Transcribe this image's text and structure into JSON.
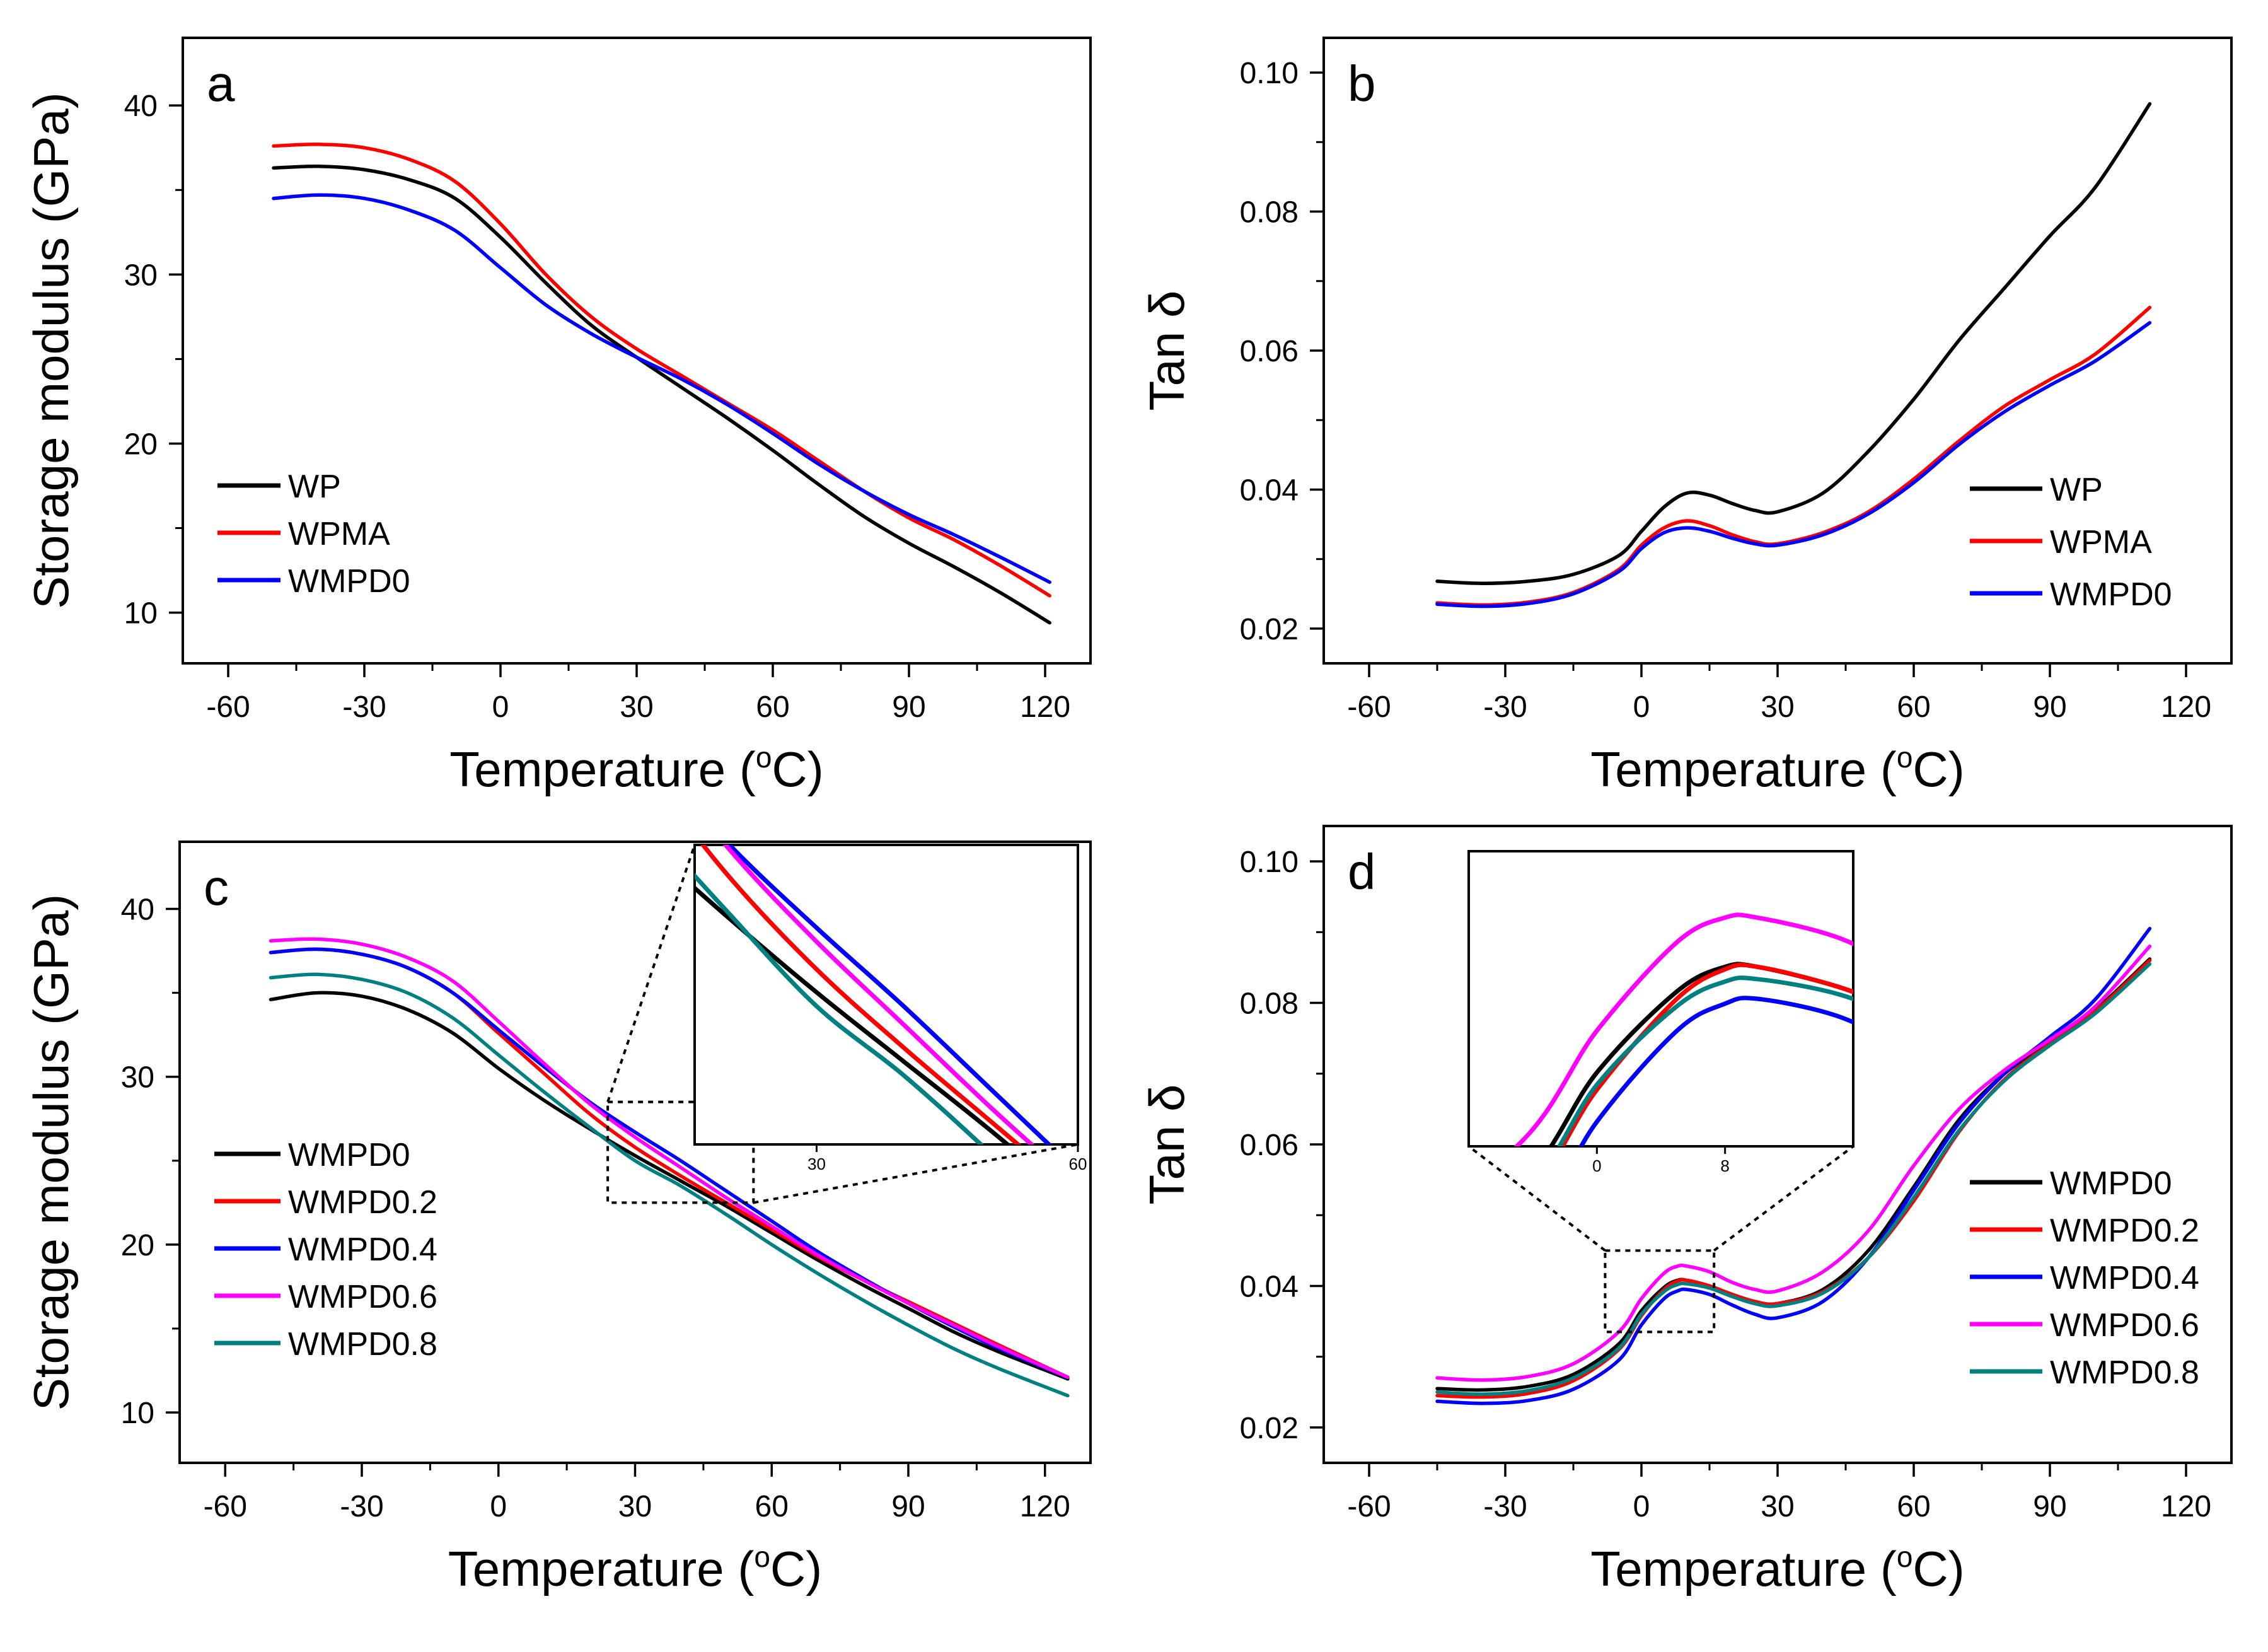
{
  "figure": {
    "description_free": true
  },
  "chart_data": [
    {
      "id": "a",
      "type": "line",
      "panel_label": "a",
      "xlabel": "Temperature (",
      "xlabel_unit": "C",
      "xlabel_sup": "o",
      "xlabel_close": ")",
      "ylabel": "Storage modulus (GPa)",
      "xlim": [
        -70,
        130
      ],
      "ylim": [
        7,
        44
      ],
      "xticks": [
        -60,
        -30,
        0,
        30,
        60,
        90,
        120
      ],
      "yticks": [
        10,
        20,
        30,
        40
      ],
      "xtick_labels": [
        "-60",
        "-30",
        "0",
        "30",
        "60",
        "90",
        "120"
      ],
      "ytick_labels": [
        "10",
        "20",
        "30",
        "40"
      ],
      "legend_position": "bottom-left",
      "series": [
        {
          "name": "WP",
          "color": "#000000",
          "x": [
            -50,
            -40,
            -30,
            -20,
            -10,
            0,
            10,
            20,
            30,
            40,
            50,
            60,
            70,
            80,
            90,
            100,
            110,
            121
          ],
          "y": [
            36.3,
            36.4,
            36.2,
            35.6,
            34.5,
            32.2,
            29.5,
            27.0,
            25.1,
            23.3,
            21.5,
            19.6,
            17.6,
            15.7,
            14.1,
            12.7,
            11.2,
            9.4
          ]
        },
        {
          "name": "WPMA",
          "color": "#ff0000",
          "x": [
            -50,
            -40,
            -30,
            -20,
            -10,
            0,
            10,
            20,
            30,
            40,
            50,
            60,
            70,
            80,
            90,
            100,
            110,
            121
          ],
          "y": [
            37.6,
            37.7,
            37.5,
            36.8,
            35.5,
            33.0,
            30.0,
            27.5,
            25.6,
            24.0,
            22.4,
            20.8,
            19.0,
            17.2,
            15.6,
            14.3,
            12.8,
            11.0
          ]
        },
        {
          "name": "WMPD0",
          "color": "#0000ff",
          "x": [
            -50,
            -40,
            -30,
            -20,
            -10,
            0,
            10,
            20,
            30,
            40,
            50,
            60,
            70,
            80,
            90,
            100,
            110,
            121
          ],
          "y": [
            34.5,
            34.7,
            34.5,
            33.8,
            32.6,
            30.4,
            28.2,
            26.5,
            25.1,
            23.8,
            22.3,
            20.6,
            18.8,
            17.2,
            15.8,
            14.6,
            13.3,
            11.8
          ]
        }
      ]
    },
    {
      "id": "b",
      "type": "line",
      "panel_label": "b",
      "xlabel": "Temperature (",
      "xlabel_unit": "C",
      "xlabel_sup": "o",
      "xlabel_close": ")",
      "ylabel": "Tan δ",
      "xlim": [
        -70,
        130
      ],
      "ylim": [
        0.015,
        0.105
      ],
      "xticks": [
        -60,
        -30,
        0,
        30,
        60,
        90,
        120
      ],
      "yticks": [
        0.02,
        0.04,
        0.06,
        0.08,
        0.1
      ],
      "xtick_labels": [
        "-60",
        "-30",
        "0",
        "30",
        "60",
        "90",
        "120"
      ],
      "ytick_labels": [
        "0.02",
        "0.04",
        "0.06",
        "0.08",
        "0.10"
      ],
      "legend_position": "bottom-right",
      "series": [
        {
          "name": "WP",
          "color": "#000000",
          "x": [
            -45,
            -35,
            -25,
            -15,
            -5,
            0,
            5,
            10,
            15,
            20,
            25,
            30,
            40,
            50,
            60,
            70,
            80,
            90,
            100,
            112
          ],
          "y": [
            0.0268,
            0.0265,
            0.0268,
            0.0278,
            0.0305,
            0.034,
            0.0375,
            0.0395,
            0.0392,
            0.038,
            0.037,
            0.0368,
            0.0395,
            0.0455,
            0.053,
            0.0615,
            0.069,
            0.0765,
            0.0835,
            0.0955
          ]
        },
        {
          "name": "WPMA",
          "color": "#ff0000",
          "x": [
            -45,
            -35,
            -25,
            -15,
            -5,
            0,
            5,
            10,
            15,
            20,
            25,
            30,
            40,
            50,
            60,
            70,
            80,
            90,
            100,
            112
          ],
          "y": [
            0.0237,
            0.0234,
            0.0238,
            0.0252,
            0.0285,
            0.032,
            0.0345,
            0.0355,
            0.0348,
            0.0335,
            0.0325,
            0.0322,
            0.0338,
            0.0368,
            0.0415,
            0.047,
            0.052,
            0.0558,
            0.0595,
            0.0662
          ]
        },
        {
          "name": "WMPD0",
          "color": "#0000ff",
          "x": [
            -45,
            -35,
            -25,
            -15,
            -5,
            0,
            5,
            10,
            15,
            20,
            25,
            30,
            40,
            50,
            60,
            70,
            80,
            90,
            100,
            112
          ],
          "y": [
            0.0235,
            0.0232,
            0.0236,
            0.025,
            0.0282,
            0.0315,
            0.0338,
            0.0345,
            0.034,
            0.033,
            0.0322,
            0.032,
            0.0335,
            0.0365,
            0.041,
            0.0465,
            0.0512,
            0.055,
            0.0585,
            0.064
          ]
        }
      ]
    },
    {
      "id": "c",
      "type": "line",
      "panel_label": "c",
      "xlabel": "Temperature (",
      "xlabel_unit": "C",
      "xlabel_sup": "o",
      "xlabel_close": ")",
      "ylabel": "Storage modulus (GPa)",
      "xlim": [
        -70,
        130
      ],
      "ylim": [
        7,
        44
      ],
      "xticks": [
        -60,
        -30,
        0,
        30,
        60,
        90,
        120
      ],
      "yticks": [
        10,
        20,
        30,
        40
      ],
      "xtick_labels": [
        "-60",
        "-30",
        "0",
        "30",
        "60",
        "90",
        "120"
      ],
      "ytick_labels": [
        "10",
        "20",
        "30",
        "40"
      ],
      "legend_position": "bottom-left",
      "inset": {
        "xlim": [
          16,
          60
        ],
        "ylim": [
          22,
          28.5
        ],
        "xticks": [
          30,
          60
        ],
        "xtick_labels": [
          "30",
          "60"
        ],
        "zoom_region": {
          "x": [
            24,
            56
          ],
          "y": [
            22.5,
            28.5
          ]
        }
      },
      "series": [
        {
          "name": "WMPD0",
          "color": "#000000",
          "x": [
            -50,
            -40,
            -30,
            -20,
            -10,
            0,
            10,
            20,
            30,
            40,
            50,
            60,
            70,
            80,
            90,
            100,
            110,
            125
          ],
          "y": [
            34.6,
            35.0,
            34.8,
            34.0,
            32.6,
            30.5,
            28.6,
            26.9,
            25.3,
            23.8,
            22.3,
            20.7,
            19.1,
            17.6,
            16.2,
            14.8,
            13.6,
            12.0
          ]
        },
        {
          "name": "WMPD0.2",
          "color": "#ff0000",
          "x": [
            -50,
            -40,
            -30,
            -20,
            -10,
            0,
            10,
            20,
            30,
            40,
            50,
            60,
            70,
            80,
            90,
            100,
            110,
            125
          ],
          "y": [
            37.4,
            37.6,
            37.3,
            36.5,
            35.0,
            32.6,
            30.2,
            27.8,
            25.8,
            24.1,
            22.5,
            20.9,
            19.3,
            17.9,
            16.6,
            15.3,
            14.0,
            12.1
          ]
        },
        {
          "name": "WMPD0.4",
          "color": "#0000ff",
          "x": [
            -50,
            -40,
            -30,
            -20,
            -10,
            0,
            10,
            20,
            30,
            40,
            50,
            60,
            70,
            80,
            90,
            100,
            110,
            125
          ],
          "y": [
            37.4,
            37.6,
            37.3,
            36.5,
            35.0,
            32.8,
            30.6,
            28.5,
            26.7,
            25.0,
            23.2,
            21.4,
            19.6,
            18.0,
            16.5,
            15.1,
            13.8,
            12.1
          ]
        },
        {
          "name": "WMPD0.6",
          "color": "#ff00ff",
          "x": [
            -50,
            -40,
            -30,
            -20,
            -10,
            0,
            10,
            20,
            30,
            40,
            50,
            60,
            70,
            80,
            90,
            100,
            110,
            125
          ],
          "y": [
            38.1,
            38.2,
            37.9,
            37.1,
            35.7,
            33.3,
            30.8,
            28.4,
            26.4,
            24.6,
            22.8,
            21.1,
            19.4,
            17.9,
            16.5,
            15.2,
            13.9,
            12.1
          ]
        },
        {
          "name": "WMPD0.8",
          "color": "#008080",
          "x": [
            -50,
            -40,
            -30,
            -20,
            -10,
            0,
            10,
            20,
            30,
            40,
            50,
            60,
            70,
            80,
            90,
            100,
            110,
            125
          ],
          "y": [
            35.9,
            36.1,
            35.8,
            35.0,
            33.5,
            31.3,
            29.1,
            27.0,
            25.0,
            23.5,
            21.8,
            20.0,
            18.3,
            16.7,
            15.2,
            13.8,
            12.6,
            11.0
          ]
        }
      ]
    },
    {
      "id": "d",
      "type": "line",
      "panel_label": "d",
      "xlabel": "Temperature (",
      "xlabel_unit": "C",
      "xlabel_sup": "o",
      "xlabel_close": ")",
      "ylabel": "Tan δ",
      "xlim": [
        -70,
        130
      ],
      "ylim": [
        0.015,
        0.105
      ],
      "xticks": [
        -60,
        -30,
        0,
        30,
        60,
        90,
        120
      ],
      "yticks": [
        0.02,
        0.04,
        0.06,
        0.08,
        0.1
      ],
      "xtick_labels": [
        "-60",
        "-30",
        "0",
        "30",
        "60",
        "90",
        "120"
      ],
      "ytick_labels": [
        "0.02",
        "0.04",
        "0.06",
        "0.08",
        "0.10"
      ],
      "legend_position": "bottom-right",
      "inset": {
        "xlim": [
          -8,
          16
        ],
        "ylim": [
          0.0335,
          0.0455
        ],
        "xticks": [
          0,
          8
        ],
        "xtick_labels": [
          "0",
          "8"
        ],
        "zoom_region": {
          "x": [
            -8,
            16
          ],
          "y": [
            0.0335,
            0.045
          ]
        }
      },
      "series": [
        {
          "name": "WMPD0",
          "color": "#000000",
          "x": [
            -45,
            -35,
            -25,
            -15,
            -5,
            0,
            5,
            8,
            10,
            15,
            20,
            25,
            30,
            40,
            50,
            60,
            70,
            80,
            90,
            100,
            112
          ],
          "y": [
            0.0255,
            0.0253,
            0.0258,
            0.0275,
            0.0318,
            0.0365,
            0.0398,
            0.0408,
            0.0408,
            0.04,
            0.0388,
            0.0378,
            0.0375,
            0.0395,
            0.045,
            0.054,
            0.0635,
            0.07,
            0.0745,
            0.079,
            0.0862
          ]
        },
        {
          "name": "WMPD0.2",
          "color": "#ff0000",
          "x": [
            -45,
            -35,
            -25,
            -15,
            -5,
            0,
            5,
            8,
            10,
            15,
            20,
            25,
            30,
            40,
            50,
            60,
            70,
            80,
            90,
            100,
            112
          ],
          "y": [
            0.0245,
            0.0243,
            0.0248,
            0.0266,
            0.031,
            0.0358,
            0.0395,
            0.0407,
            0.0408,
            0.04,
            0.0388,
            0.0378,
            0.0375,
            0.0392,
            0.044,
            0.052,
            0.0618,
            0.0692,
            0.0742,
            0.0788,
            0.086
          ]
        },
        {
          "name": "WMPD0.4",
          "color": "#0000ff",
          "x": [
            -45,
            -35,
            -25,
            -15,
            -5,
            0,
            5,
            8,
            10,
            15,
            20,
            25,
            30,
            40,
            50,
            60,
            70,
            80,
            90,
            100,
            112
          ],
          "y": [
            0.0237,
            0.0234,
            0.0238,
            0.0254,
            0.0295,
            0.0345,
            0.0382,
            0.0393,
            0.0395,
            0.0388,
            0.0373,
            0.036,
            0.0355,
            0.0378,
            0.044,
            0.0535,
            0.063,
            0.07,
            0.0752,
            0.0805,
            0.0905
          ]
        },
        {
          "name": "WMPD0.6",
          "color": "#ff00ff",
          "x": [
            -45,
            -35,
            -25,
            -15,
            -5,
            0,
            5,
            8,
            10,
            15,
            20,
            25,
            30,
            40,
            50,
            60,
            70,
            80,
            90,
            100,
            112
          ],
          "y": [
            0.027,
            0.0267,
            0.0272,
            0.029,
            0.0335,
            0.0382,
            0.0418,
            0.0428,
            0.0428,
            0.042,
            0.0405,
            0.0395,
            0.0393,
            0.042,
            0.0478,
            0.057,
            0.065,
            0.0705,
            0.0748,
            0.0795,
            0.088
          ]
        },
        {
          "name": "WMPD0.8",
          "color": "#008080",
          "x": [
            -45,
            -35,
            -25,
            -15,
            -5,
            0,
            5,
            8,
            10,
            15,
            20,
            25,
            30,
            40,
            50,
            60,
            70,
            80,
            90,
            100,
            112
          ],
          "y": [
            0.025,
            0.0247,
            0.0252,
            0.027,
            0.0312,
            0.036,
            0.0392,
            0.0402,
            0.0403,
            0.0397,
            0.0385,
            0.0375,
            0.0372,
            0.039,
            0.044,
            0.0525,
            0.062,
            0.069,
            0.074,
            0.0785,
            0.0855
          ]
        }
      ]
    }
  ]
}
